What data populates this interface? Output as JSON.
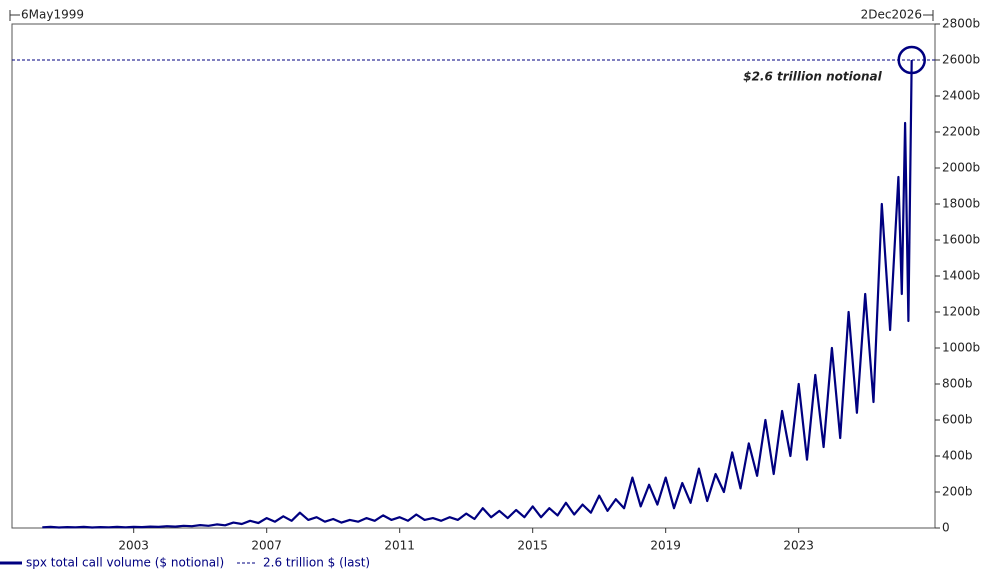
{
  "chart_data": {
    "type": "line",
    "range_start_label": "6May1999",
    "range_end_label": "2Dec2026",
    "annotation": "$2.6 trillion notional",
    "xlim": [
      1999.34,
      2027.1
    ],
    "xticks": [
      2003,
      2007,
      2011,
      2015,
      2019,
      2023
    ],
    "ylim": [
      0,
      2800
    ],
    "yticks": [
      0,
      {
        "value": 200,
        "label": "200b"
      },
      {
        "value": 400,
        "label": "400b"
      },
      {
        "value": 600,
        "label": "600b"
      },
      {
        "value": 800,
        "label": "800b"
      },
      {
        "value": 1000,
        "label": "1000b"
      },
      {
        "value": 1200,
        "label": "1200b"
      },
      {
        "value": 1400,
        "label": "1400b"
      },
      {
        "value": 1600,
        "label": "1600b"
      },
      {
        "value": 1800,
        "label": "1800b"
      },
      {
        "value": 2000,
        "label": "2000b"
      },
      {
        "value": 2200,
        "label": "2200b"
      },
      {
        "value": 2400,
        "label": "2400b"
      },
      {
        "value": 2600,
        "label": "2600b"
      },
      {
        "value": 2800,
        "label": "2800b"
      }
    ],
    "x": [
      2000.25,
      2000.5,
      2000.75,
      2001,
      2001.25,
      2001.5,
      2001.75,
      2002,
      2002.25,
      2002.5,
      2002.75,
      2003,
      2003.25,
      2003.5,
      2003.75,
      2004,
      2004.25,
      2004.5,
      2004.75,
      2005,
      2005.25,
      2005.5,
      2005.75,
      2006,
      2006.25,
      2006.5,
      2006.75,
      2007,
      2007.25,
      2007.5,
      2007.75,
      2008,
      2008.25,
      2008.5,
      2008.75,
      2009,
      2009.25,
      2009.5,
      2009.75,
      2010,
      2010.25,
      2010.5,
      2010.75,
      2011,
      2011.25,
      2011.5,
      2011.75,
      2012,
      2012.25,
      2012.5,
      2012.75,
      2013,
      2013.25,
      2013.5,
      2013.75,
      2014,
      2014.25,
      2014.5,
      2014.75,
      2015,
      2015.25,
      2015.5,
      2015.75,
      2016,
      2016.25,
      2016.5,
      2016.75,
      2017,
      2017.25,
      2017.5,
      2017.75,
      2018,
      2018.25,
      2018.5,
      2018.75,
      2019,
      2019.25,
      2019.5,
      2019.75,
      2020,
      2020.25,
      2020.5,
      2020.75,
      2021,
      2021.25,
      2021.5,
      2021.75,
      2022,
      2022.25,
      2022.5,
      2022.75,
      2023,
      2023.25,
      2023.5,
      2023.75,
      2024,
      2024.25,
      2024.5,
      2024.75,
      2025,
      2025.25,
      2025.5,
      2025.75,
      2026,
      2026.1,
      2026.2,
      2026.3,
      2026.4
    ],
    "series": [
      {
        "name": "spx total call volume ($ notional)",
        "color": "#000080",
        "values": [
          4,
          6,
          3,
          5,
          4,
          6,
          3,
          5,
          4,
          6,
          4,
          6,
          5,
          8,
          6,
          10,
          8,
          12,
          10,
          16,
          12,
          20,
          15,
          30,
          22,
          40,
          28,
          55,
          35,
          65,
          40,
          85,
          45,
          60,
          35,
          50,
          30,
          45,
          35,
          55,
          40,
          70,
          45,
          60,
          40,
          75,
          45,
          55,
          40,
          60,
          45,
          80,
          50,
          110,
          60,
          95,
          55,
          100,
          60,
          120,
          60,
          110,
          70,
          140,
          75,
          130,
          85,
          180,
          95,
          160,
          110,
          280,
          120,
          240,
          130,
          280,
          110,
          250,
          140,
          330,
          150,
          300,
          200,
          420,
          220,
          470,
          290,
          600,
          300,
          650,
          400,
          800,
          380,
          850,
          450,
          1000,
          500,
          1200,
          640,
          1300,
          700,
          1800,
          1100,
          1950,
          1300,
          2250,
          1150,
          2600
        ]
      }
    ],
    "reference": {
      "name": "2.6 trillion $ (last)",
      "value": 2600,
      "color": "#000080"
    }
  }
}
